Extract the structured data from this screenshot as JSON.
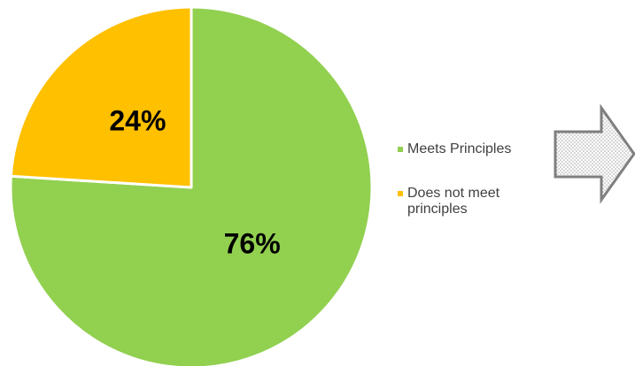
{
  "chart_data": {
    "type": "pie",
    "title": "",
    "slices": [
      {
        "label": "Meets Principles",
        "value": 76,
        "display": "76%",
        "color": "#92D050"
      },
      {
        "label": "Does not meet principles",
        "value": 24,
        "display": "24%",
        "color": "#FFC000"
      }
    ],
    "start_angle_deg": 0,
    "direction": "clockwise",
    "legend_position": "right"
  },
  "colors": {
    "slice_border": "#ffffff",
    "arrow_stroke": "#7F7F7F",
    "arrow_fill_dots": "#A6A6A6",
    "label_text": "#000000",
    "legend_text": "#404040"
  },
  "icons": {
    "arrow": "right-arrow-icon"
  }
}
